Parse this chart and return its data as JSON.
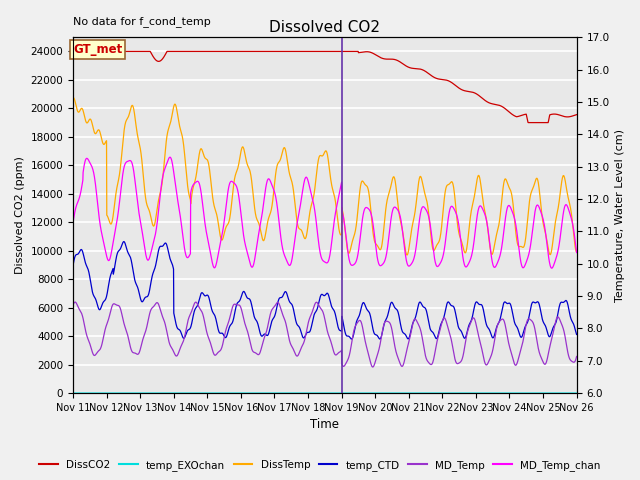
{
  "title": "Dissolved CO2",
  "top_left_text": "No data for f_cond_temp",
  "xlabel": "Time",
  "ylabel_left": "Dissolved CO2 (ppm)",
  "ylabel_right": "Temperature, Water Level (cm)",
  "ylim_left": [
    0,
    25000
  ],
  "ylim_right": [
    6.0,
    17.0
  ],
  "xlim": [
    0,
    15
  ],
  "x_ticks": [
    0,
    1,
    2,
    3,
    4,
    5,
    6,
    7,
    8,
    9,
    10,
    11,
    12,
    13,
    14,
    15
  ],
  "x_tick_labels": [
    "Nov 11",
    "Nov 12",
    "Nov 13",
    "Nov 14",
    "Nov 15",
    "Nov 16",
    "Nov 17",
    "Nov 18",
    "Nov 19",
    "Nov 20",
    "Nov 21",
    "Nov 22",
    "Nov 23",
    "Nov 24",
    "Nov 25",
    "Nov 26"
  ],
  "y_ticks_left": [
    0,
    2000,
    4000,
    6000,
    8000,
    10000,
    12000,
    14000,
    16000,
    18000,
    20000,
    22000,
    24000
  ],
  "y_ticks_right": [
    6.0,
    7.0,
    8.0,
    9.0,
    10.0,
    11.0,
    12.0,
    13.0,
    14.0,
    15.0,
    16.0,
    17.0
  ],
  "colors": {
    "DissCO2": "#cc0000",
    "temp_EXOchan": "#00dddd",
    "DissTemp": "#ffaa00",
    "temp_CTD": "#0000cc",
    "MD_Temp": "#9933cc",
    "MD_Temp_chan": "#ff00ff"
  },
  "annotation_box": {
    "text": "GT_met",
    "bg": "#ffffcc",
    "border": "#996633"
  },
  "vline_x": 8.0,
  "vline_color": "#6633aa",
  "bg_color": "#e8e8e8",
  "plot_bg_bands": true,
  "figsize": [
    6.4,
    4.8
  ],
  "dpi": 100
}
